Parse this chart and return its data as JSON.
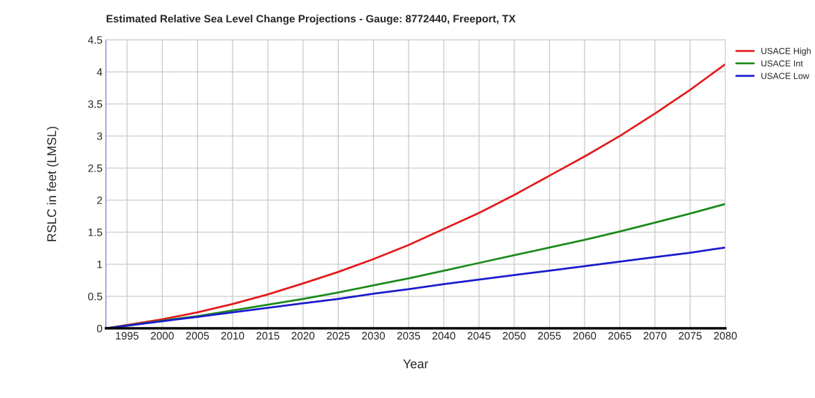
{
  "chart_data": {
    "type": "line",
    "title": "Estimated Relative Sea Level Change Projections - Gauge: 8772440, Freeport, TX",
    "xlabel": "Year",
    "ylabel": "RSLC in feet (LMSL)",
    "x": [
      1992,
      2000,
      2005,
      2010,
      2015,
      2020,
      2025,
      2030,
      2035,
      2040,
      2045,
      2050,
      2055,
      2060,
      2065,
      2070,
      2075,
      2080
    ],
    "series": [
      {
        "name": "USACE High",
        "color": "#e31a1c",
        "values": [
          0,
          0.14,
          0.25,
          0.38,
          0.53,
          0.7,
          0.88,
          1.08,
          1.3,
          1.55,
          1.8,
          2.08,
          2.38,
          2.68,
          3.0,
          3.35,
          3.72,
          4.12
        ]
      },
      {
        "name": "USACE Int",
        "color": "#1a8a1a",
        "values": [
          0,
          0.12,
          0.19,
          0.28,
          0.37,
          0.46,
          0.56,
          0.67,
          0.78,
          0.9,
          1.02,
          1.14,
          1.26,
          1.38,
          1.51,
          1.65,
          1.79,
          1.94
        ]
      },
      {
        "name": "USACE Low",
        "color": "#1a1acc",
        "values": [
          0,
          0.11,
          0.18,
          0.25,
          0.32,
          0.39,
          0.46,
          0.54,
          0.61,
          0.69,
          0.76,
          0.83,
          0.9,
          0.97,
          1.04,
          1.11,
          1.18,
          1.26
        ]
      }
    ],
    "xlim": [
      1992,
      2080
    ],
    "xticks": [
      1995,
      2000,
      2005,
      2010,
      2015,
      2020,
      2025,
      2030,
      2035,
      2040,
      2045,
      2050,
      2055,
      2060,
      2065,
      2070,
      2075,
      2080
    ],
    "ylim": [
      0,
      4.5
    ],
    "yticks": [
      0,
      0.5,
      1,
      1.5,
      2,
      2.5,
      3,
      3.5,
      4,
      4.5
    ],
    "grid": true,
    "legend": "top right"
  }
}
